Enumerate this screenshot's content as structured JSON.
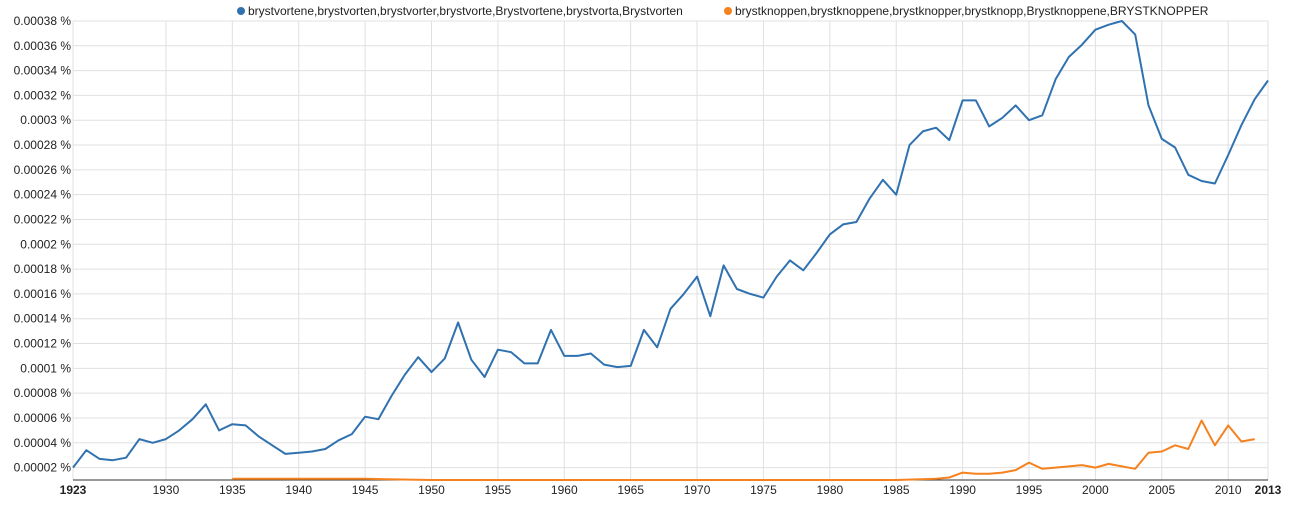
{
  "chart_data": {
    "type": "line",
    "title": "",
    "xlabel": "",
    "ylabel": "",
    "xlim": [
      1923,
      2013
    ],
    "ylim": [
      1e-05,
      0.00038
    ],
    "grid": true,
    "legend_position": "top",
    "y_ticks": [
      {
        "value": 2e-05,
        "label": "0.00002 %"
      },
      {
        "value": 4e-05,
        "label": "0.00004 %"
      },
      {
        "value": 6e-05,
        "label": "0.00006 %"
      },
      {
        "value": 8e-05,
        "label": "0.00008 %"
      },
      {
        "value": 0.0001,
        "label": "0.0001 %"
      },
      {
        "value": 0.00012,
        "label": "0.00012 %"
      },
      {
        "value": 0.00014,
        "label": "0.00014 %"
      },
      {
        "value": 0.00016,
        "label": "0.00016 %"
      },
      {
        "value": 0.00018,
        "label": "0.00018 %"
      },
      {
        "value": 0.0002,
        "label": "0.0002 %"
      },
      {
        "value": 0.00022,
        "label": "0.00022 %"
      },
      {
        "value": 0.00024,
        "label": "0.00024 %"
      },
      {
        "value": 0.00026,
        "label": "0.00026 %"
      },
      {
        "value": 0.00028,
        "label": "0.00028 %"
      },
      {
        "value": 0.0003,
        "label": "0.0003 %"
      },
      {
        "value": 0.00032,
        "label": "0.00032 %"
      },
      {
        "value": 0.00034,
        "label": "0.00034 %"
      },
      {
        "value": 0.00036,
        "label": "0.00036 %"
      },
      {
        "value": 0.00038,
        "label": "0.00038 %"
      }
    ],
    "x_ticks": [
      {
        "value": 1923,
        "label": "1923",
        "bold": true
      },
      {
        "value": 1930,
        "label": "1930"
      },
      {
        "value": 1935,
        "label": "1935"
      },
      {
        "value": 1940,
        "label": "1940"
      },
      {
        "value": 1945,
        "label": "1945"
      },
      {
        "value": 1950,
        "label": "1950"
      },
      {
        "value": 1955,
        "label": "1955"
      },
      {
        "value": 1960,
        "label": "1960"
      },
      {
        "value": 1965,
        "label": "1965"
      },
      {
        "value": 1970,
        "label": "1970"
      },
      {
        "value": 1975,
        "label": "1975"
      },
      {
        "value": 1980,
        "label": "1980"
      },
      {
        "value": 1985,
        "label": "1985"
      },
      {
        "value": 1990,
        "label": "1990"
      },
      {
        "value": 1995,
        "label": "1995"
      },
      {
        "value": 2000,
        "label": "2000"
      },
      {
        "value": 2005,
        "label": "2005"
      },
      {
        "value": 2010,
        "label": "2010"
      },
      {
        "value": 2013,
        "label": "2013",
        "bold": true
      }
    ],
    "series": [
      {
        "name": "brystvortene,brystvorten,brystvorter,brystvorte,Brystvortene,brystvorta,Brystvorten",
        "color": "#3072b0",
        "points": [
          [
            1923,
            2e-05
          ],
          [
            1924,
            3.4e-05
          ],
          [
            1925,
            2.7e-05
          ],
          [
            1926,
            2.6e-05
          ],
          [
            1927,
            2.8e-05
          ],
          [
            1928,
            4.3e-05
          ],
          [
            1929,
            4e-05
          ],
          [
            1930,
            4.3e-05
          ],
          [
            1931,
            5e-05
          ],
          [
            1932,
            5.9e-05
          ],
          [
            1933,
            7.1e-05
          ],
          [
            1934,
            5e-05
          ],
          [
            1935,
            5.5e-05
          ],
          [
            1936,
            5.4e-05
          ],
          [
            1937,
            4.5e-05
          ],
          [
            1938,
            3.8e-05
          ],
          [
            1939,
            3.1e-05
          ],
          [
            1940,
            3.2e-05
          ],
          [
            1941,
            3.3e-05
          ],
          [
            1942,
            3.5e-05
          ],
          [
            1943,
            4.2e-05
          ],
          [
            1944,
            4.7e-05
          ],
          [
            1945,
            6.1e-05
          ],
          [
            1946,
            5.9e-05
          ],
          [
            1947,
            7.8e-05
          ],
          [
            1948,
            9.5e-05
          ],
          [
            1949,
            0.000109
          ],
          [
            1950,
            9.7e-05
          ],
          [
            1951,
            0.000108
          ],
          [
            1952,
            0.000137
          ],
          [
            1953,
            0.000107
          ],
          [
            1954,
            9.3e-05
          ],
          [
            1955,
            0.000115
          ],
          [
            1956,
            0.000113
          ],
          [
            1957,
            0.000104
          ],
          [
            1958,
            0.000104
          ],
          [
            1959,
            0.000131
          ],
          [
            1960,
            0.00011
          ],
          [
            1961,
            0.00011
          ],
          [
            1962,
            0.000112
          ],
          [
            1963,
            0.000103
          ],
          [
            1964,
            0.000101
          ],
          [
            1965,
            0.000102
          ],
          [
            1966,
            0.000131
          ],
          [
            1967,
            0.000117
          ],
          [
            1968,
            0.000148
          ],
          [
            1969,
            0.00016
          ],
          [
            1970,
            0.000174
          ],
          [
            1971,
            0.000142
          ],
          [
            1972,
            0.000183
          ],
          [
            1973,
            0.000164
          ],
          [
            1974,
            0.00016
          ],
          [
            1975,
            0.000157
          ],
          [
            1976,
            0.000174
          ],
          [
            1977,
            0.000187
          ],
          [
            1978,
            0.000179
          ],
          [
            1979,
            0.000193
          ],
          [
            1980,
            0.000208
          ],
          [
            1981,
            0.000216
          ],
          [
            1982,
            0.000218
          ],
          [
            1983,
            0.000237
          ],
          [
            1984,
            0.000252
          ],
          [
            1985,
            0.00024
          ],
          [
            1986,
            0.00028
          ],
          [
            1987,
            0.000291
          ],
          [
            1988,
            0.000294
          ],
          [
            1989,
            0.000284
          ],
          [
            1990,
            0.000316
          ],
          [
            1991,
            0.000316
          ],
          [
            1992,
            0.000295
          ],
          [
            1993,
            0.000302
          ],
          [
            1994,
            0.000312
          ],
          [
            1995,
            0.0003
          ],
          [
            1996,
            0.000304
          ],
          [
            1997,
            0.000333
          ],
          [
            1998,
            0.000351
          ],
          [
            1999,
            0.000361
          ],
          [
            2000,
            0.000373
          ],
          [
            2001,
            0.000377
          ],
          [
            2002,
            0.00038
          ],
          [
            2003,
            0.000369
          ],
          [
            2004,
            0.000312
          ],
          [
            2005,
            0.000285
          ],
          [
            2006,
            0.000278
          ],
          [
            2007,
            0.000256
          ],
          [
            2008,
            0.000251
          ],
          [
            2009,
            0.000249
          ],
          [
            2010,
            0.000272
          ],
          [
            2011,
            0.000296
          ],
          [
            2012,
            0.000317
          ],
          [
            2013,
            0.000332
          ]
        ]
      },
      {
        "name": "brystknoppen,brystknoppene,brystknopper,brystknopp,Brystknoppene,BRYSTKNOPPER",
        "color": "#f5821f",
        "points": [
          [
            1935,
            1.1e-05
          ],
          [
            1940,
            1.1e-05
          ],
          [
            1945,
            1.1e-05
          ],
          [
            1950,
            1e-05
          ],
          [
            1955,
            1e-05
          ],
          [
            1960,
            1e-05
          ],
          [
            1965,
            1e-05
          ],
          [
            1970,
            1e-05
          ],
          [
            1975,
            1e-05
          ],
          [
            1980,
            1e-05
          ],
          [
            1985,
            1e-05
          ],
          [
            1988,
            1.1e-05
          ],
          [
            1989,
            1.2e-05
          ],
          [
            1990,
            1.6e-05
          ],
          [
            1991,
            1.5e-05
          ],
          [
            1992,
            1.5e-05
          ],
          [
            1993,
            1.6e-05
          ],
          [
            1994,
            1.8e-05
          ],
          [
            1995,
            2.4e-05
          ],
          [
            1996,
            1.9e-05
          ],
          [
            1997,
            2e-05
          ],
          [
            1998,
            2.1e-05
          ],
          [
            1999,
            2.2e-05
          ],
          [
            2000,
            2e-05
          ],
          [
            2001,
            2.3e-05
          ],
          [
            2002,
            2.1e-05
          ],
          [
            2003,
            1.9e-05
          ],
          [
            2004,
            3.2e-05
          ],
          [
            2005,
            3.3e-05
          ],
          [
            2006,
            3.8e-05
          ],
          [
            2007,
            3.5e-05
          ],
          [
            2008,
            5.8e-05
          ],
          [
            2009,
            3.8e-05
          ],
          [
            2010,
            5.4e-05
          ],
          [
            2011,
            4.1e-05
          ],
          [
            2012,
            4.3e-05
          ]
        ]
      }
    ]
  }
}
